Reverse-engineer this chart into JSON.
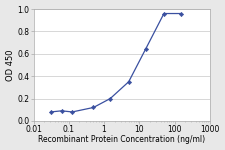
{
  "x": [
    0.031,
    0.062,
    0.125,
    0.5,
    1.5,
    5,
    15,
    50,
    150
  ],
  "y": [
    0.08,
    0.09,
    0.08,
    0.12,
    0.2,
    0.35,
    0.64,
    0.96,
    0.96
  ],
  "line_color": "#3a50a0",
  "marker": "D",
  "marker_size": 2.2,
  "marker_facecolor": "#3a50a0",
  "ylabel": "OD 450",
  "xlabel": "Recombinant Protein Concentration (ng/ml)",
  "ylim": [
    0,
    1.0
  ],
  "yticks": [
    0,
    0.2,
    0.4,
    0.6,
    0.8,
    1
  ],
  "xlim_log": [
    0.01,
    1000
  ],
  "xticks": [
    0.01,
    0.1,
    1,
    10,
    100,
    1000
  ],
  "xtick_labels": [
    "0.01",
    "0.1",
    "1",
    "10",
    "100",
    "1000"
  ],
  "plot_bg_color": "#ffffff",
  "outer_bg_color": "#e8e8e8",
  "grid_color": "#c8c8c8",
  "spine_color": "#aaaaaa",
  "ylabel_fontsize": 6.0,
  "xlabel_fontsize": 5.5,
  "tick_fontsize": 5.5,
  "linewidth": 0.9
}
